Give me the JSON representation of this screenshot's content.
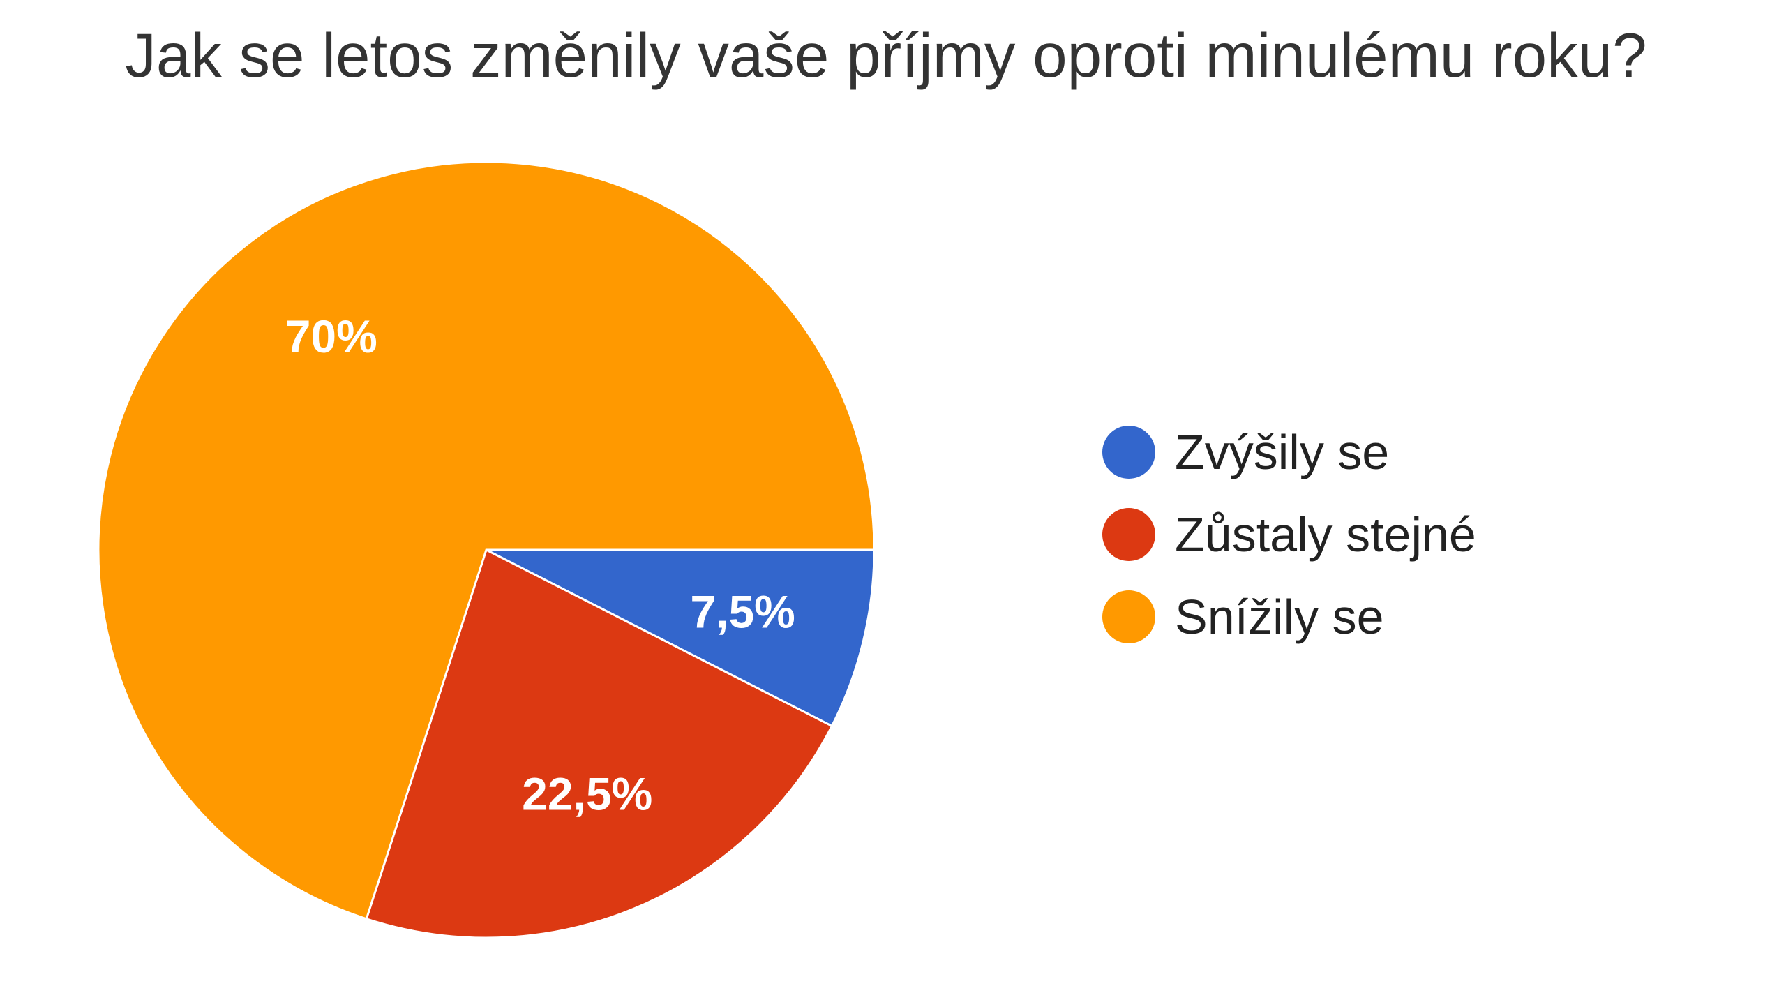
{
  "chart_data": {
    "type": "pie",
    "title": "Jak se letos změnily vaše příjmy oproti minulému roku?",
    "legend_position": "right",
    "slices": [
      {
        "label": "Zvýšily se",
        "value": 7.5,
        "value_label": "7,5%",
        "color": "#3366cc"
      },
      {
        "label": "Zůstaly stejné",
        "value": 22.5,
        "value_label": "22,5%",
        "color": "#dc3912"
      },
      {
        "label": "Snížily se",
        "value": 70,
        "value_label": "70%",
        "color": "#ff9900"
      }
    ]
  }
}
